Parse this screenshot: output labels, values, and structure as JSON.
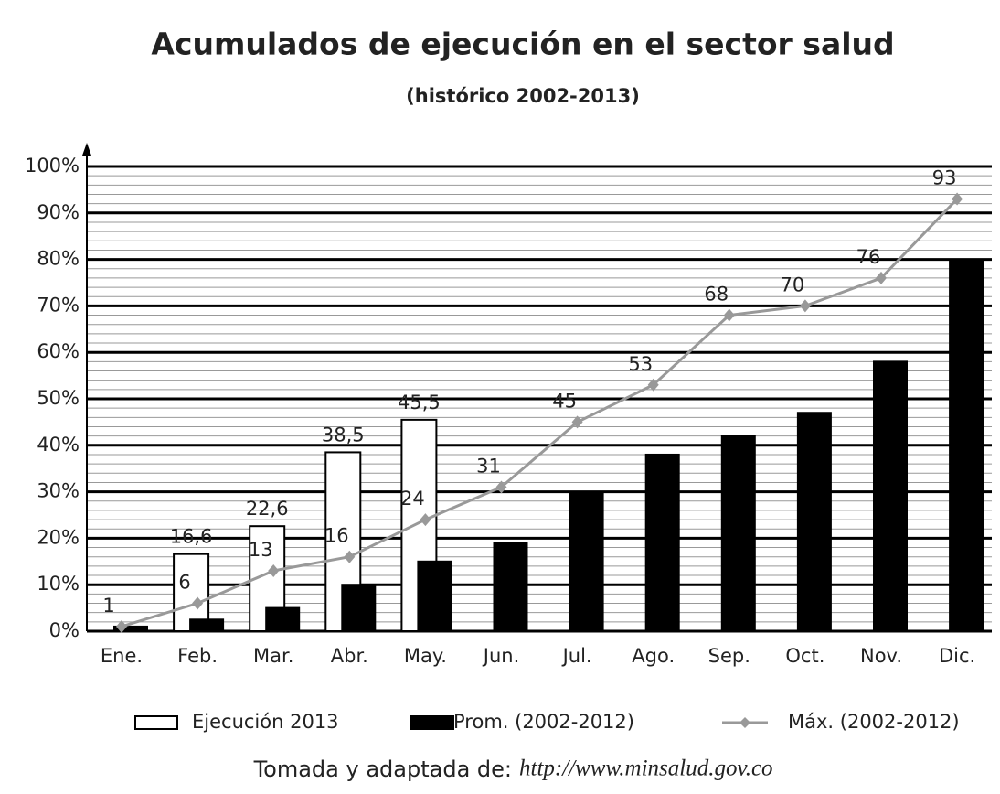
{
  "chart_data": {
    "type": "bar",
    "title": "Acumulados de ejecución en el sector salud",
    "subtitle": "(histórico 2002-2013)",
    "categories": [
      "Ene.",
      "Feb.",
      "Mar.",
      "Abr.",
      "May.",
      "Jun.",
      "Jul.",
      "Ago.",
      "Sep.",
      "Oct.",
      "Nov.",
      "Dic."
    ],
    "series": [
      {
        "name": "Ejecución 2013",
        "type": "bar",
        "color": "#ffffff",
        "values": [
          null,
          16.6,
          22.6,
          38.5,
          45.5,
          null,
          null,
          null,
          null,
          null,
          null,
          null
        ],
        "value_labels": [
          null,
          "16,6",
          "22,6",
          "38,5",
          "45,5",
          null,
          null,
          null,
          null,
          null,
          null,
          null
        ]
      },
      {
        "name": "Prom. (2002-2012)",
        "type": "bar",
        "color": "#000000",
        "values": [
          1,
          2.5,
          5,
          10,
          15,
          19,
          30,
          38,
          42,
          47,
          58,
          80
        ]
      },
      {
        "name": "Máx. (2002-2012)",
        "type": "line",
        "color": "#999999",
        "values": [
          1,
          6,
          13,
          16,
          24,
          31,
          45,
          53,
          68,
          70,
          76,
          93
        ]
      }
    ],
    "ylim": [
      0,
      100
    ],
    "yticks": [
      {
        "value": 0,
        "label": "0%"
      },
      {
        "value": 10,
        "label": "10%"
      },
      {
        "value": 20,
        "label": "20%"
      },
      {
        "value": 30,
        "label": "30%"
      },
      {
        "value": 40,
        "label": "40%"
      },
      {
        "value": 50,
        "label": "50%"
      },
      {
        "value": 60,
        "label": "60%"
      },
      {
        "value": 70,
        "label": "70%"
      },
      {
        "value": 80,
        "label": "80%"
      },
      {
        "value": 90,
        "label": "90%"
      },
      {
        "value": 100,
        "label": "100%"
      }
    ],
    "grid": true,
    "legend": "bottom",
    "note": "Tomada y adaptada de:",
    "source_url": "http://www.minsalud.gov.co"
  }
}
